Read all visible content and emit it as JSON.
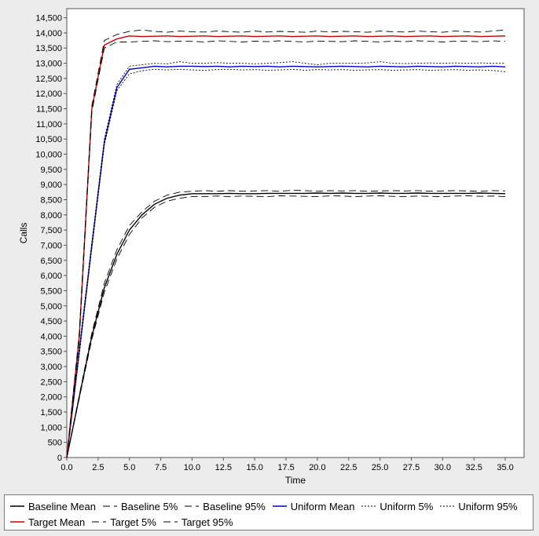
{
  "chart_data": {
    "type": "line",
    "xlabel": "Time",
    "ylabel": "Calls",
    "xlim": [
      0,
      36.5
    ],
    "ylim": [
      0,
      14800
    ],
    "x_ticks": [
      0,
      2.5,
      5,
      7.5,
      10,
      12.5,
      15,
      17.5,
      20,
      22.5,
      25,
      27.5,
      30,
      32.5,
      35
    ],
    "x_tick_labels": [
      "0.0",
      "2.5",
      "5.0",
      "7.5",
      "10.0",
      "12.5",
      "15.0",
      "17.5",
      "20.0",
      "22.5",
      "25.0",
      "27.5",
      "30.0",
      "32.5",
      "35.0"
    ],
    "y_ticks": [
      0,
      500,
      1000,
      1500,
      2000,
      2500,
      3000,
      3500,
      4000,
      4500,
      5000,
      5500,
      6000,
      6500,
      7000,
      7500,
      8000,
      8500,
      9000,
      9500,
      10000,
      10500,
      11000,
      11500,
      12000,
      12500,
      13000,
      13500,
      14000,
      14500
    ],
    "y_tick_labels": [
      "0",
      "500",
      "1,000",
      "1,500",
      "2,000",
      "2,500",
      "3,000",
      "3,500",
      "4,000",
      "4,500",
      "5,000",
      "5,500",
      "6,000",
      "6,500",
      "7,000",
      "7,500",
      "8,000",
      "8,500",
      "9,000",
      "9,500",
      "10,000",
      "10,500",
      "11,000",
      "11,500",
      "12,000",
      "12,500",
      "13,000",
      "13,500",
      "14,000",
      "14,500"
    ],
    "grid": false,
    "legend_position": "bottom",
    "x": [
      0,
      1,
      2,
      3,
      4,
      5,
      6,
      7,
      8,
      9,
      10,
      11,
      12,
      13,
      14,
      15,
      16,
      17,
      18,
      19,
      20,
      21,
      22,
      23,
      24,
      25,
      26,
      27,
      28,
      29,
      30,
      31,
      32,
      33,
      34,
      35
    ],
    "series": [
      {
        "name": "Baseline Mean",
        "color": "#000000",
        "dash": "solid",
        "values": [
          0,
          2000,
          4000,
          5600,
          6700,
          7500,
          8000,
          8350,
          8550,
          8650,
          8700,
          8700,
          8700,
          8710,
          8700,
          8700,
          8710,
          8710,
          8710,
          8710,
          8720,
          8710,
          8720,
          8710,
          8710,
          8720,
          8710,
          8710,
          8720,
          8710,
          8710,
          8710,
          8710,
          8720,
          8710,
          8700
        ]
      },
      {
        "name": "Baseline 5%",
        "color": "#000000",
        "dash": "long",
        "values": [
          0,
          1950,
          3900,
          5450,
          6550,
          7350,
          7900,
          8250,
          8450,
          8550,
          8600,
          8600,
          8620,
          8600,
          8620,
          8610,
          8600,
          8630,
          8620,
          8610,
          8600,
          8630,
          8620,
          8600,
          8620,
          8630,
          8610,
          8600,
          8620,
          8610,
          8600,
          8620,
          8630,
          8610,
          8620,
          8600
        ]
      },
      {
        "name": "Baseline 95%",
        "color": "#000000",
        "dash": "long",
        "values": [
          0,
          2050,
          4100,
          5750,
          6850,
          7650,
          8100,
          8450,
          8650,
          8750,
          8780,
          8800,
          8780,
          8800,
          8780,
          8790,
          8800,
          8780,
          8810,
          8800,
          8780,
          8800,
          8790,
          8800,
          8780,
          8790,
          8800,
          8790,
          8800,
          8780,
          8790,
          8800,
          8790,
          8780,
          8800,
          8790
        ]
      },
      {
        "name": "Uniform Mean",
        "color": "#0000cc",
        "dash": "solid",
        "values": [
          0,
          3500,
          7000,
          10400,
          12200,
          12800,
          12850,
          12900,
          12880,
          12900,
          12900,
          12890,
          12900,
          12880,
          12900,
          12890,
          12900,
          12880,
          12900,
          12890,
          12880,
          12890,
          12900,
          12890,
          12880,
          12900,
          12890,
          12880,
          12900,
          12890,
          12880,
          12900,
          12890,
          12880,
          12900,
          12880
        ]
      },
      {
        "name": "Uniform 5%",
        "color": "#000000",
        "dash": "dot",
        "values": [
          0,
          3400,
          6900,
          10300,
          12100,
          12650,
          12750,
          12800,
          12780,
          12800,
          12780,
          12770,
          12790,
          12800,
          12780,
          12790,
          12770,
          12780,
          12800,
          12770,
          12790,
          12780,
          12790,
          12770,
          12780,
          12790,
          12770,
          12780,
          12790,
          12770,
          12780,
          12790,
          12770,
          12780,
          12760,
          12720
        ]
      },
      {
        "name": "Uniform 95%",
        "color": "#000000",
        "dash": "dot",
        "values": [
          0,
          3600,
          7100,
          10500,
          12300,
          12900,
          12950,
          13000,
          12980,
          13050,
          13000,
          13000,
          13020,
          13000,
          13000,
          12980,
          13000,
          13020,
          13050,
          13000,
          12950,
          13000,
          13000,
          13000,
          13010,
          13050,
          13000,
          12990,
          13000,
          13010,
          13000,
          13010,
          13000,
          13010,
          13000,
          13000
        ]
      },
      {
        "name": "Target Mean",
        "color": "#cc0000",
        "dash": "solid",
        "values": [
          0,
          4000,
          11500,
          13600,
          13800,
          13900,
          13880,
          13890,
          13900,
          13880,
          13890,
          13900,
          13880,
          13890,
          13900,
          13880,
          13890,
          13900,
          13880,
          13890,
          13900,
          13880,
          13890,
          13900,
          13880,
          13890,
          13900,
          13880,
          13890,
          13900,
          13880,
          13890,
          13900,
          13880,
          13890,
          13900
        ]
      },
      {
        "name": "Target 5%",
        "color": "#000000",
        "dash": "long",
        "values": [
          0,
          3900,
          11400,
          13500,
          13700,
          13700,
          13720,
          13740,
          13710,
          13730,
          13720,
          13700,
          13740,
          13720,
          13700,
          13730,
          13710,
          13740,
          13720,
          13700,
          13730,
          13720,
          13710,
          13740,
          13720,
          13700,
          13730,
          13710,
          13740,
          13720,
          13700,
          13730,
          13720,
          13710,
          13740,
          13720
        ]
      },
      {
        "name": "Target 95%",
        "color": "#000000",
        "dash": "long",
        "values": [
          0,
          4100,
          11600,
          13750,
          13950,
          14050,
          14100,
          14050,
          14020,
          14060,
          14040,
          14030,
          14060,
          14040,
          14020,
          14060,
          14030,
          14050,
          14040,
          14020,
          14060,
          14030,
          14050,
          14040,
          14020,
          14060,
          14040,
          14030,
          14060,
          14040,
          14020,
          14060,
          14040,
          14030,
          14060,
          14100
        ]
      }
    ]
  }
}
